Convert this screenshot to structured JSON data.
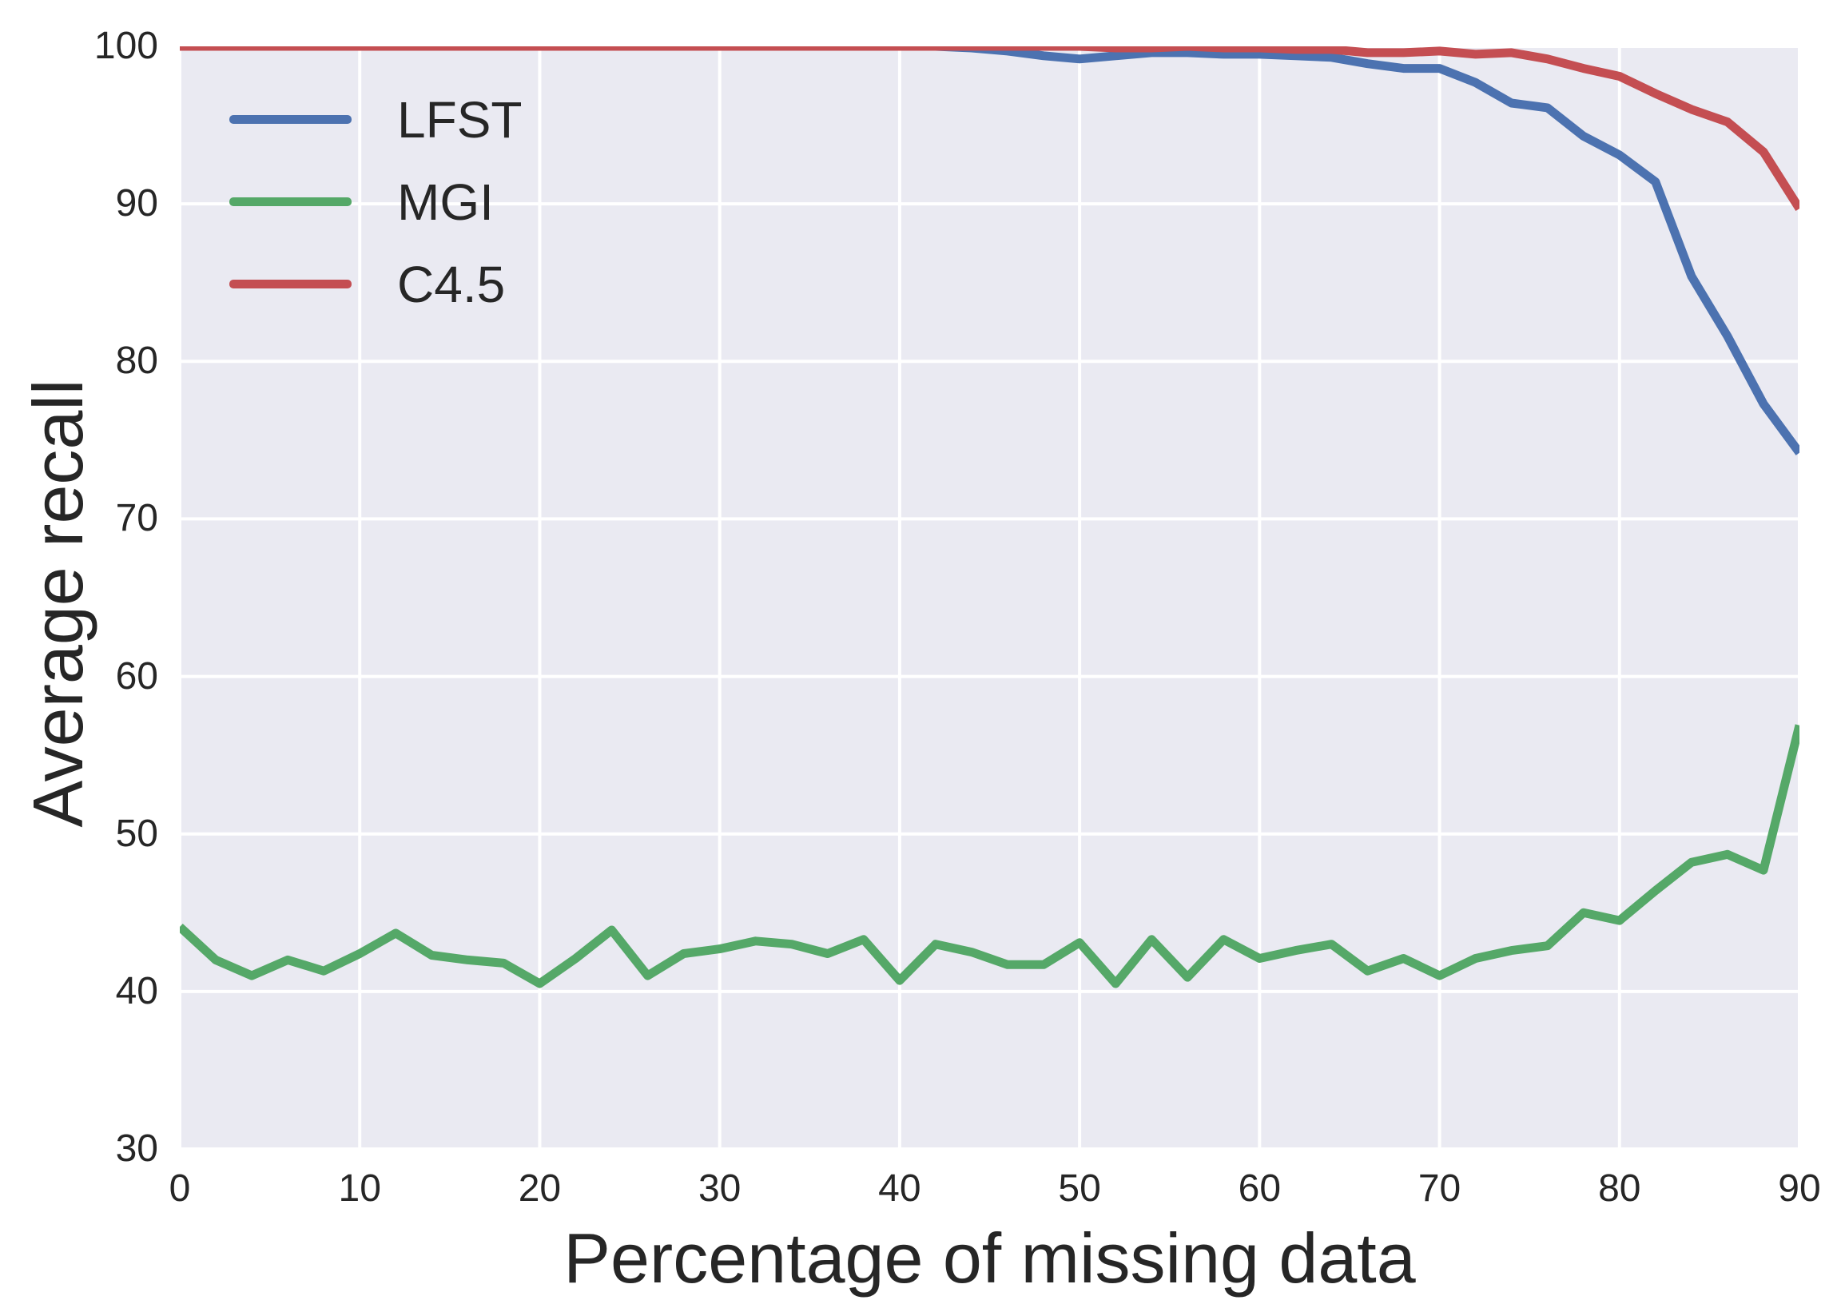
{
  "chart_data": {
    "type": "line",
    "title": "",
    "xlabel": "Percentage of missing data",
    "ylabel": "Average recall",
    "xlim": [
      0,
      90
    ],
    "ylim": [
      30,
      100
    ],
    "x_ticks": [
      0,
      10,
      20,
      30,
      40,
      50,
      60,
      70,
      80,
      90
    ],
    "y_ticks": [
      30,
      40,
      50,
      60,
      70,
      80,
      90,
      100
    ],
    "grid": true,
    "legend_position": "upper-left",
    "plot_background": "#EAEAF2",
    "grid_color": "#FFFFFF",
    "text_color": "#262626",
    "line_width": 11,
    "x": [
      0,
      2,
      4,
      6,
      8,
      10,
      12,
      14,
      16,
      18,
      20,
      22,
      24,
      26,
      28,
      30,
      32,
      34,
      36,
      38,
      40,
      42,
      44,
      46,
      48,
      50,
      52,
      54,
      56,
      58,
      60,
      62,
      64,
      66,
      68,
      70,
      72,
      74,
      76,
      78,
      80,
      82,
      84,
      86,
      88,
      90
    ],
    "series": [
      {
        "name": "LFST",
        "color": "#4C72B0",
        "values": [
          100,
          100,
          100,
          100,
          100,
          100,
          100,
          100,
          100,
          100,
          100,
          100,
          100,
          100,
          100,
          100,
          100,
          100,
          100,
          100,
          100,
          100,
          99.9,
          99.7,
          99.4,
          99.2,
          99.4,
          99.6,
          99.6,
          99.5,
          99.5,
          99.4,
          99.3,
          98.9,
          98.6,
          98.6,
          97.7,
          96.4,
          96.1,
          94.3,
          93.1,
          91.4,
          85.4,
          81.6,
          77.3,
          74.2
        ]
      },
      {
        "name": "MGI",
        "color": "#55A868",
        "values": [
          44.1,
          42.0,
          41.0,
          42.0,
          41.3,
          42.4,
          43.7,
          42.3,
          42.0,
          41.8,
          40.5,
          42.1,
          43.9,
          41.0,
          42.4,
          42.7,
          43.2,
          43.0,
          42.4,
          43.3,
          40.7,
          43.0,
          42.5,
          41.7,
          41.7,
          43.1,
          40.5,
          43.3,
          40.9,
          43.3,
          42.1,
          42.6,
          43.0,
          41.3,
          42.1,
          41.0,
          42.1,
          42.6,
          42.9,
          45.0,
          44.5,
          46.4,
          48.2,
          48.7,
          47.7,
          56.9
        ]
      },
      {
        "name": "C4.5",
        "color": "#C44E52",
        "values": [
          100,
          100,
          100,
          100,
          100,
          100,
          100,
          100,
          100,
          100,
          100,
          100,
          100,
          100,
          100,
          100,
          100,
          100,
          100,
          100,
          100,
          100,
          100,
          100,
          100,
          100,
          99.9,
          99.9,
          100,
          99.9,
          99.9,
          99.8,
          99.8,
          99.6,
          99.6,
          99.7,
          99.5,
          99.6,
          99.2,
          98.6,
          98.1,
          97.0,
          96.0,
          95.2,
          93.3,
          89.7
        ]
      }
    ]
  }
}
